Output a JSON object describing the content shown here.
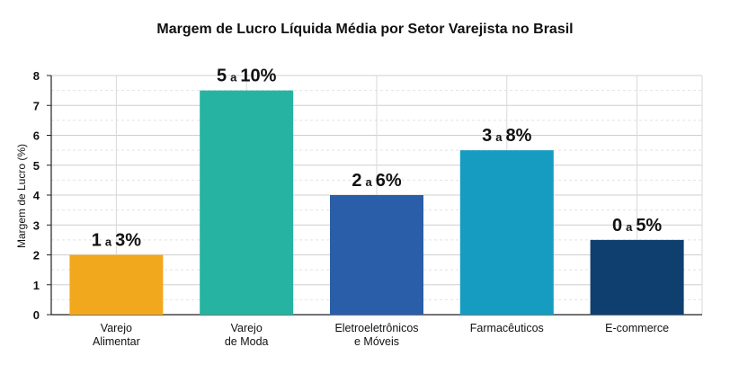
{
  "chart_data": {
    "type": "bar",
    "title": "Margem de Lucro Líquida Média por Setor Varejista no Brasil",
    "xlabel": "",
    "ylabel": "Margem de Lucro (%)",
    "ylim": [
      0,
      8
    ],
    "yticks": [
      0,
      1,
      2,
      3,
      4,
      5,
      6,
      7,
      8
    ],
    "grid": true,
    "categories": [
      [
        "Varejo",
        "Alimentar"
      ],
      [
        "Varejo",
        "de Moda"
      ],
      [
        "Eletroeletrônicos",
        "e Móveis"
      ],
      [
        "Farmacêuticos"
      ],
      [
        "E-commerce"
      ]
    ],
    "values": [
      2,
      7.5,
      4,
      5.5,
      2.5
    ],
    "data_labels": [
      {
        "low": "1",
        "sep": "a",
        "high": "3%"
      },
      {
        "low": "5",
        "sep": "a",
        "high": "10%"
      },
      {
        "low": "2",
        "sep": "a",
        "high": "6%"
      },
      {
        "low": "3",
        "sep": "a",
        "high": "8%"
      },
      {
        "low": "0",
        "sep": "a",
        "high": "5%"
      }
    ],
    "colors": [
      "#F2A81D",
      "#26B3A2",
      "#2A5EA8",
      "#169CC1",
      "#0F3F6E"
    ]
  }
}
